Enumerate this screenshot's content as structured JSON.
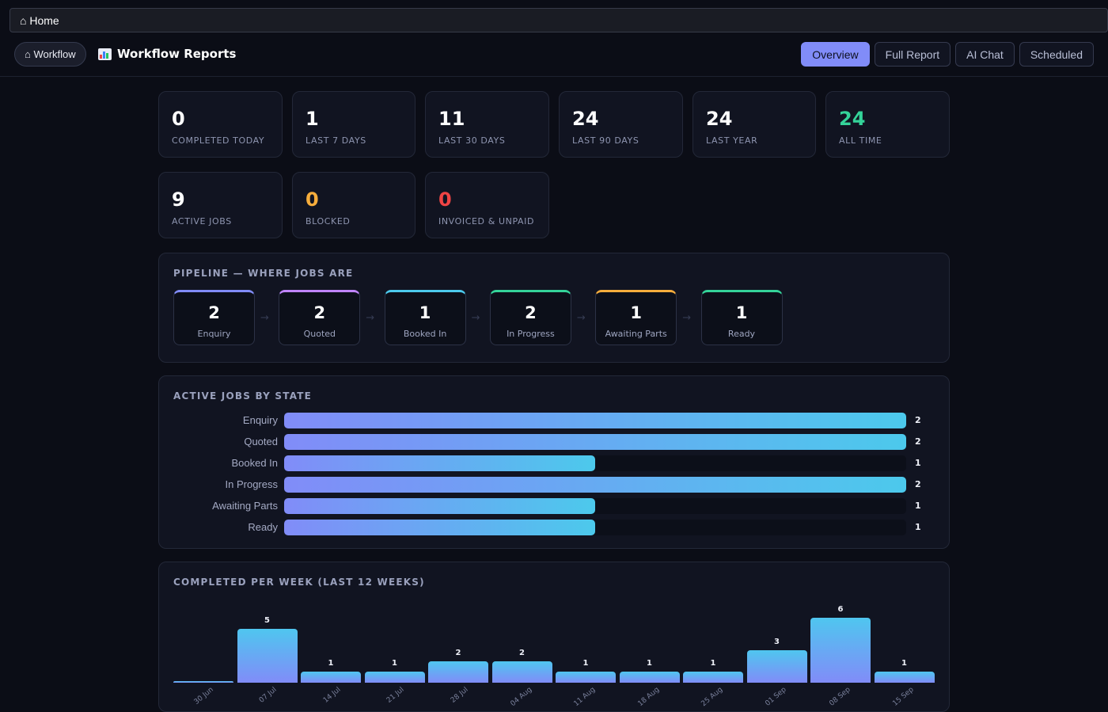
{
  "browser": {
    "home_label": "⌂ Home"
  },
  "header": {
    "back_label": "⌂ Workflow",
    "title": "Workflow Reports",
    "title_icon": "bar-chart-icon",
    "tabs": [
      {
        "label": "Overview",
        "active": true
      },
      {
        "label": "Full Report",
        "active": false
      },
      {
        "label": "AI Chat",
        "active": false
      },
      {
        "label": "Scheduled",
        "active": false
      }
    ]
  },
  "stats": [
    {
      "value": "0",
      "label": "COMPLETED TODAY",
      "color": "#ffffff"
    },
    {
      "value": "1",
      "label": "LAST 7 DAYS",
      "color": "#ffffff"
    },
    {
      "value": "11",
      "label": "LAST 30 DAYS",
      "color": "#ffffff"
    },
    {
      "value": "24",
      "label": "LAST 90 DAYS",
      "color": "#ffffff"
    },
    {
      "value": "24",
      "label": "LAST YEAR",
      "color": "#ffffff"
    },
    {
      "value": "24",
      "label": "ALL TIME",
      "color": "#34d399"
    }
  ],
  "status_stats": [
    {
      "value": "9",
      "label": "ACTIVE JOBS",
      "color": "#ffffff"
    },
    {
      "value": "0",
      "label": "BLOCKED",
      "color": "#f6ad3c"
    },
    {
      "value": "0",
      "label": "INVOICED & UNPAID",
      "color": "#ef4444"
    }
  ],
  "pipeline": {
    "title": "PIPELINE — WHERE JOBS ARE",
    "arrow": "→",
    "stages": [
      {
        "count": "2",
        "label": "Enquiry",
        "color": "#818cf8"
      },
      {
        "count": "2",
        "label": "Quoted",
        "color": "#c084fc"
      },
      {
        "count": "1",
        "label": "Booked In",
        "color": "#4cc9ec"
      },
      {
        "count": "2",
        "label": "In Progress",
        "color": "#34d399"
      },
      {
        "count": "1",
        "label": "Awaiting Parts",
        "color": "#f6ad3c"
      },
      {
        "count": "1",
        "label": "Ready",
        "color": "#34d399"
      }
    ]
  },
  "active_by_state": {
    "title": "ACTIVE JOBS BY STATE",
    "chart_data": {
      "type": "bar",
      "orientation": "horizontal",
      "categories": [
        "Enquiry",
        "Quoted",
        "Booked In",
        "In Progress",
        "Awaiting Parts",
        "Ready"
      ],
      "values": [
        2,
        2,
        1,
        2,
        1,
        1
      ],
      "xlim": [
        0,
        2
      ]
    }
  },
  "completed_per_week": {
    "title": "COMPLETED PER WEEK (LAST 12 WEEKS)",
    "chart_data": {
      "type": "bar",
      "categories": [
        "30 Jun",
        "07 Jul",
        "14 Jul",
        "21 Jul",
        "28 Jul",
        "04 Aug",
        "11 Aug",
        "18 Aug",
        "25 Aug",
        "01 Sep",
        "08 Sep",
        "15 Sep"
      ],
      "values": [
        0,
        5,
        1,
        1,
        2,
        2,
        1,
        1,
        1,
        3,
        6,
        1
      ],
      "ylim": [
        0,
        6
      ]
    }
  }
}
